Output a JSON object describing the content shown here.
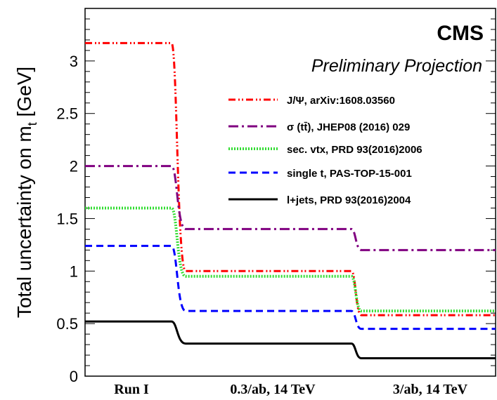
{
  "chart_data": {
    "type": "line",
    "experiment": "CMS",
    "subtitle": "Preliminary Projection",
    "ylabel": "Total uncertainty on m",
    "ylabel_sub": "t",
    "ylabel_unit": " [GeV]",
    "ylim": [
      0,
      3.5
    ],
    "yticks": [
      "0",
      "0.5",
      "1",
      "1.5",
      "2",
      "2.5",
      "3"
    ],
    "categories": [
      "Run I",
      "0.3/ab, 14 TeV",
      "3/ab, 14 TeV"
    ],
    "legend_position": "top-right",
    "series": [
      {
        "name": "J/Ψ, arXiv:1608.03560",
        "values": [
          3.17,
          1.0,
          0.58
        ],
        "color": "#ff0000",
        "style": "dash-dot-dot"
      },
      {
        "name": "σ (tt̄), JHEP08 (2016) 029",
        "values": [
          2.0,
          1.4,
          1.2
        ],
        "color": "#800080",
        "style": "dash-dot"
      },
      {
        "name": "sec. vtx, PRD 93(2016)2006",
        "values": [
          1.6,
          0.95,
          0.62
        ],
        "color": "#33dd33",
        "style": "dotted"
      },
      {
        "name": "single t, PAS-TOP-15-001",
        "values": [
          1.24,
          0.62,
          0.45
        ],
        "color": "#0000ff",
        "style": "dashed"
      },
      {
        "name": "l+jets, PRD 93(2016)2004",
        "values": [
          0.52,
          0.31,
          0.17
        ],
        "color": "#000000",
        "style": "solid"
      }
    ]
  }
}
